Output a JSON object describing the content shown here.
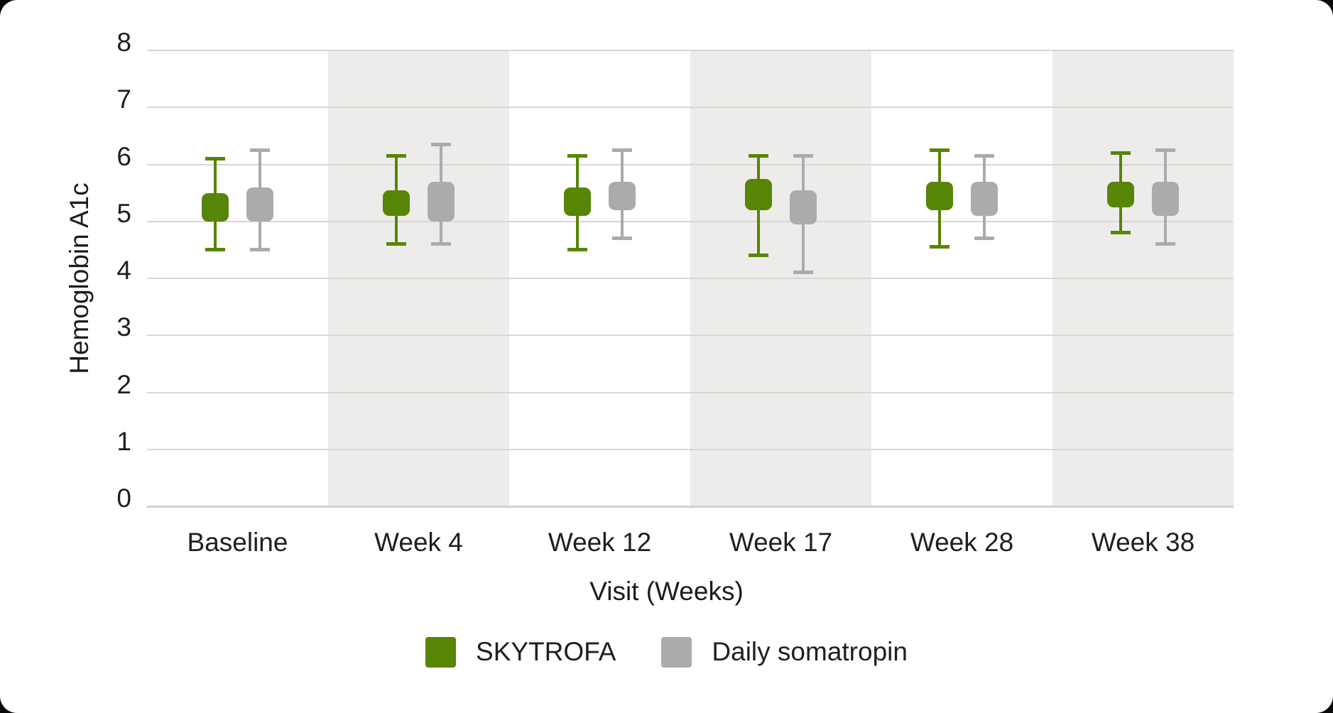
{
  "chart_data": {
    "type": "boxplot",
    "title": "",
    "xlabel": "Visit (Weeks)",
    "ylabel": "Hemoglobin A1c",
    "ylim": [
      0,
      8
    ],
    "y_ticks": [
      8,
      7,
      6,
      5,
      4,
      3,
      2,
      1,
      0
    ],
    "grid": true,
    "legend_position": "bottom",
    "categories": [
      "Baseline",
      "Week 4",
      "Week 12",
      "Week 17",
      "Week 28",
      "Week 38"
    ],
    "striped_categories": [
      "Week 4",
      "Week 17",
      "Week 38"
    ],
    "stripe_color": "#EDECEA",
    "series": [
      {
        "name": "SKYTROFA",
        "color": "#578505",
        "box_low": [
          5.0,
          5.1,
          5.1,
          5.2,
          5.2,
          5.25
        ],
        "box_high": [
          5.5,
          5.55,
          5.6,
          5.75,
          5.7,
          5.7
        ],
        "whisker_low": [
          4.5,
          4.6,
          4.5,
          4.4,
          4.55,
          4.8
        ],
        "whisker_high": [
          6.1,
          6.15,
          6.15,
          6.15,
          6.25,
          6.2
        ]
      },
      {
        "name": "Daily somatropin",
        "color": "#ABABAB",
        "box_low": [
          5.0,
          5.0,
          5.2,
          4.95,
          5.1,
          5.1
        ],
        "box_high": [
          5.6,
          5.7,
          5.7,
          5.55,
          5.7,
          5.7
        ],
        "whisker_low": [
          4.5,
          4.6,
          4.7,
          4.1,
          4.7,
          4.6
        ],
        "whisker_high": [
          6.25,
          6.35,
          6.25,
          6.15,
          6.15,
          6.25
        ]
      }
    ]
  }
}
